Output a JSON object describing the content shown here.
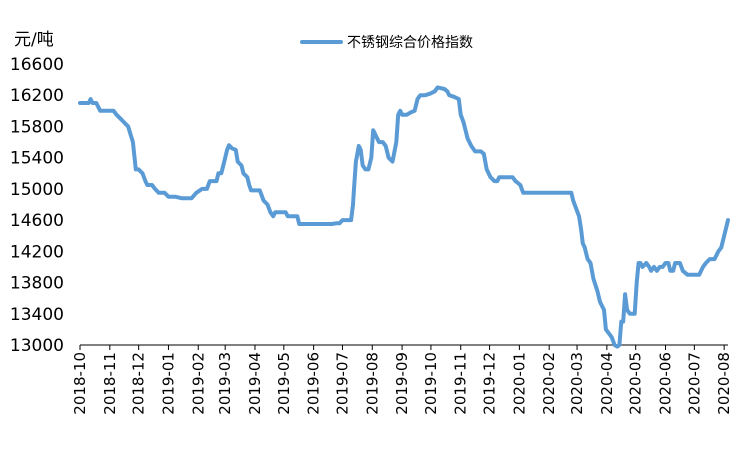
{
  "chart_data": {
    "type": "line",
    "unit_label": "元/吨",
    "legend": {
      "placement": "top-center"
    },
    "grid": false,
    "ylim": [
      13000,
      16600
    ],
    "yticks": [
      13000,
      13400,
      13800,
      14200,
      14600,
      15000,
      15400,
      15800,
      16200,
      16600
    ],
    "xticks": [
      "2018-10",
      "2018-11",
      "2018-12",
      "2019-01",
      "2019-02",
      "2019-03",
      "2019-04",
      "2019-05",
      "2019-06",
      "2019-07",
      "2019-08",
      "2019-09",
      "2019-10",
      "2019-11",
      "2019-12",
      "2020-01",
      "2020-02",
      "2020-03",
      "2020-04",
      "2020-05",
      "2020-06",
      "2020-07",
      "2020-08"
    ],
    "colors": {
      "series": "#5b9bd5",
      "axis": "#000000"
    },
    "series": [
      {
        "name": "不锈钢综合价格指数",
        "points": [
          [
            "2018-10-01",
            16100
          ],
          [
            "2018-10-10",
            16100
          ],
          [
            "2018-10-12",
            16150
          ],
          [
            "2018-10-14",
            16100
          ],
          [
            "2018-10-18",
            16100
          ],
          [
            "2018-10-22",
            16000
          ],
          [
            "2018-10-28",
            16000
          ],
          [
            "2018-11-05",
            16000
          ],
          [
            "2018-11-08",
            15950
          ],
          [
            "2018-11-12",
            15900
          ],
          [
            "2018-11-16",
            15850
          ],
          [
            "2018-11-20",
            15800
          ],
          [
            "2018-11-25",
            15600
          ],
          [
            "2018-11-28",
            15250
          ],
          [
            "2018-12-01",
            15250
          ],
          [
            "2018-12-05",
            15200
          ],
          [
            "2018-12-08",
            15100
          ],
          [
            "2018-12-10",
            15050
          ],
          [
            "2018-12-15",
            15050
          ],
          [
            "2018-12-18",
            15000
          ],
          [
            "2018-12-22",
            14950
          ],
          [
            "2018-12-28",
            14950
          ],
          [
            "2019-01-01",
            14900
          ],
          [
            "2019-01-08",
            14900
          ],
          [
            "2019-01-15",
            14880
          ],
          [
            "2019-01-25",
            14880
          ],
          [
            "2019-01-30",
            14950
          ],
          [
            "2019-02-05",
            15000
          ],
          [
            "2019-02-10",
            15000
          ],
          [
            "2019-02-13",
            15100
          ],
          [
            "2019-02-16",
            15100
          ],
          [
            "2019-02-20",
            15100
          ],
          [
            "2019-02-22",
            15200
          ],
          [
            "2019-02-25",
            15200
          ],
          [
            "2019-02-27",
            15300
          ],
          [
            "2019-03-01",
            15400
          ],
          [
            "2019-03-03",
            15500
          ],
          [
            "2019-03-05",
            15560
          ],
          [
            "2019-03-08",
            15520
          ],
          [
            "2019-03-12",
            15500
          ],
          [
            "2019-03-14",
            15350
          ],
          [
            "2019-03-18",
            15300
          ],
          [
            "2019-03-20",
            15200
          ],
          [
            "2019-03-24",
            15150
          ],
          [
            "2019-03-26",
            15050
          ],
          [
            "2019-03-28",
            14980
          ],
          [
            "2019-04-01",
            14980
          ],
          [
            "2019-04-06",
            14980
          ],
          [
            "2019-04-10",
            14850
          ],
          [
            "2019-04-14",
            14800
          ],
          [
            "2019-04-17",
            14700
          ],
          [
            "2019-04-20",
            14650
          ],
          [
            "2019-04-22",
            14700
          ],
          [
            "2019-04-28",
            14700
          ],
          [
            "2019-05-03",
            14700
          ],
          [
            "2019-05-05",
            14650
          ],
          [
            "2019-05-12",
            14650
          ],
          [
            "2019-05-15",
            14650
          ],
          [
            "2019-05-17",
            14550
          ],
          [
            "2019-06-01",
            14550
          ],
          [
            "2019-06-10",
            14550
          ],
          [
            "2019-06-20",
            14550
          ],
          [
            "2019-06-25",
            14560
          ],
          [
            "2019-06-28",
            14560
          ],
          [
            "2019-07-01",
            14600
          ],
          [
            "2019-07-05",
            14600
          ],
          [
            "2019-07-10",
            14600
          ],
          [
            "2019-07-12",
            14800
          ],
          [
            "2019-07-13",
            15000
          ],
          [
            "2019-07-15",
            15350
          ],
          [
            "2019-07-18",
            15550
          ],
          [
            "2019-07-20",
            15500
          ],
          [
            "2019-07-22",
            15300
          ],
          [
            "2019-07-25",
            15250
          ],
          [
            "2019-07-28",
            15250
          ],
          [
            "2019-07-31",
            15400
          ],
          [
            "2019-08-02",
            15750
          ],
          [
            "2019-08-04",
            15700
          ],
          [
            "2019-08-06",
            15650
          ],
          [
            "2019-08-08",
            15600
          ],
          [
            "2019-08-12",
            15600
          ],
          [
            "2019-08-15",
            15550
          ],
          [
            "2019-08-18",
            15400
          ],
          [
            "2019-08-22",
            15350
          ],
          [
            "2019-08-26",
            15600
          ],
          [
            "2019-08-28",
            15950
          ],
          [
            "2019-08-30",
            16000
          ],
          [
            "2019-09-01",
            15950
          ],
          [
            "2019-09-06",
            15950
          ],
          [
            "2019-09-10",
            15980
          ],
          [
            "2019-09-14",
            16000
          ],
          [
            "2019-09-17",
            16150
          ],
          [
            "2019-09-20",
            16200
          ],
          [
            "2019-09-25",
            16200
          ],
          [
            "2019-09-30",
            16220
          ],
          [
            "2019-10-05",
            16250
          ],
          [
            "2019-10-08",
            16300
          ],
          [
            "2019-10-15",
            16280
          ],
          [
            "2019-10-18",
            16250
          ],
          [
            "2019-10-20",
            16200
          ],
          [
            "2019-10-25",
            16180
          ],
          [
            "2019-10-30",
            16150
          ],
          [
            "2019-11-01",
            15950
          ],
          [
            "2019-11-04",
            15850
          ],
          [
            "2019-11-08",
            15650
          ],
          [
            "2019-11-12",
            15550
          ],
          [
            "2019-11-16",
            15480
          ],
          [
            "2019-11-22",
            15480
          ],
          [
            "2019-11-25",
            15450
          ],
          [
            "2019-11-28",
            15250
          ],
          [
            "2019-12-02",
            15150
          ],
          [
            "2019-12-06",
            15100
          ],
          [
            "2019-12-09",
            15100
          ],
          [
            "2019-12-11",
            15150
          ],
          [
            "2019-12-15",
            15150
          ],
          [
            "2019-12-20",
            15150
          ],
          [
            "2019-12-25",
            15150
          ],
          [
            "2019-12-28",
            15100
          ],
          [
            "2020-01-02",
            15050
          ],
          [
            "2020-01-05",
            14950
          ],
          [
            "2020-01-12",
            14950
          ],
          [
            "2020-01-25",
            14950
          ],
          [
            "2020-02-05",
            14950
          ],
          [
            "2020-02-15",
            14950
          ],
          [
            "2020-02-24",
            14950
          ],
          [
            "2020-02-26",
            14850
          ],
          [
            "2020-02-29",
            14750
          ],
          [
            "2020-03-03",
            14650
          ],
          [
            "2020-03-05",
            14500
          ],
          [
            "2020-03-07",
            14300
          ],
          [
            "2020-03-09",
            14250
          ],
          [
            "2020-03-12",
            14100
          ],
          [
            "2020-03-15",
            14050
          ],
          [
            "2020-03-18",
            13850
          ],
          [
            "2020-03-22",
            13700
          ],
          [
            "2020-03-25",
            13550
          ],
          [
            "2020-03-29",
            13450
          ],
          [
            "2020-03-31",
            13200
          ],
          [
            "2020-04-03",
            13150
          ],
          [
            "2020-04-06",
            13100
          ],
          [
            "2020-04-09",
            13000
          ],
          [
            "2020-04-12",
            12980
          ],
          [
            "2020-04-14",
            13000
          ],
          [
            "2020-04-16",
            13300
          ],
          [
            "2020-04-18",
            13300
          ],
          [
            "2020-04-20",
            13650
          ],
          [
            "2020-04-22",
            13450
          ],
          [
            "2020-04-25",
            13400
          ],
          [
            "2020-04-30",
            13400
          ],
          [
            "2020-05-02",
            13800
          ],
          [
            "2020-05-04",
            14050
          ],
          [
            "2020-05-06",
            14050
          ],
          [
            "2020-05-08",
            14000
          ],
          [
            "2020-05-12",
            14050
          ],
          [
            "2020-05-15",
            14000
          ],
          [
            "2020-05-17",
            13950
          ],
          [
            "2020-05-20",
            14000
          ],
          [
            "2020-05-23",
            13950
          ],
          [
            "2020-05-26",
            14000
          ],
          [
            "2020-05-29",
            14000
          ],
          [
            "2020-06-01",
            14050
          ],
          [
            "2020-06-04",
            14050
          ],
          [
            "2020-06-06",
            13950
          ],
          [
            "2020-06-09",
            13950
          ],
          [
            "2020-06-11",
            14050
          ],
          [
            "2020-06-16",
            14050
          ],
          [
            "2020-06-19",
            13950
          ],
          [
            "2020-06-24",
            13900
          ],
          [
            "2020-06-28",
            13900
          ],
          [
            "2020-07-02",
            13900
          ],
          [
            "2020-07-06",
            13900
          ],
          [
            "2020-07-08",
            13950
          ],
          [
            "2020-07-10",
            14000
          ],
          [
            "2020-07-13",
            14050
          ],
          [
            "2020-07-17",
            14100
          ],
          [
            "2020-07-20",
            14100
          ],
          [
            "2020-07-22",
            14100
          ],
          [
            "2020-07-24",
            14150
          ],
          [
            "2020-07-26",
            14200
          ],
          [
            "2020-07-29",
            14250
          ],
          [
            "2020-08-01",
            14400
          ],
          [
            "2020-08-03",
            14500
          ],
          [
            "2020-08-05",
            14600
          ]
        ]
      }
    ]
  }
}
